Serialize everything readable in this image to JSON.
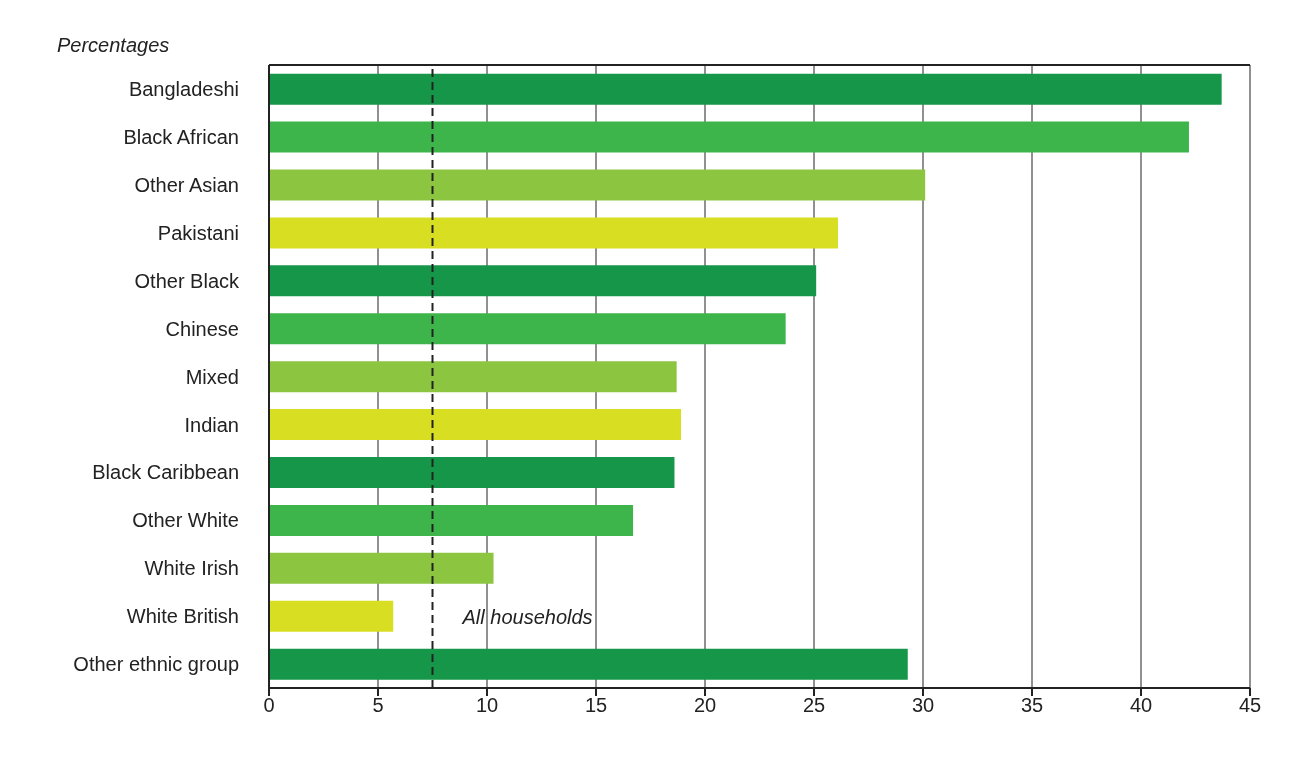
{
  "chart_data": {
    "type": "bar",
    "orientation": "horizontal",
    "xlabel": "Percentages",
    "categories": [
      "Bangladeshi",
      "Black African",
      "Other Asian",
      "Pakistani",
      "Other Black",
      "Chinese",
      "Mixed",
      "Indian",
      "Black Caribbean",
      "Other White",
      "White Irish",
      "White British",
      "Other ethnic group"
    ],
    "values": [
      43.7,
      42.2,
      30.1,
      26.1,
      25.1,
      23.7,
      18.7,
      18.9,
      18.6,
      16.7,
      10.3,
      5.7,
      29.3
    ],
    "colors": [
      "#169648",
      "#3db54a",
      "#8cc540",
      "#d8df22",
      "#169648",
      "#3db54a",
      "#8cc540",
      "#d8df22",
      "#169648",
      "#3db54a",
      "#8cc540",
      "#d8df22",
      "#169648"
    ],
    "xlim": [
      0,
      45
    ],
    "xticks": [
      0,
      5,
      10,
      15,
      20,
      25,
      30,
      35,
      40,
      45
    ],
    "grid": "x",
    "ref_lines": [
      {
        "axis": "x",
        "value": 7.5,
        "label": "All households",
        "color": "#222222",
        "line_style": "dashed"
      }
    ]
  }
}
